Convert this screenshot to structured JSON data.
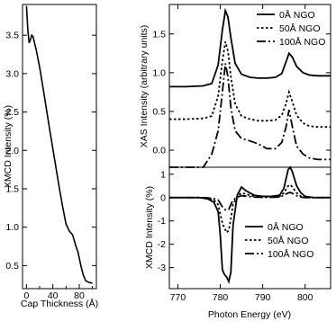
{
  "chart_data": [
    {
      "type": "line",
      "xlabel": "Cap Thickness (Å)",
      "ylabel": "XMCD Intensity (%)",
      "xlim": [
        -6,
        106
      ],
      "ylim": [
        0.2,
        3.9
      ],
      "xticks": [
        0,
        40,
        80
      ],
      "xtick_labels": [
        "0",
        "40",
        "80"
      ],
      "xminor": [
        20,
        60,
        100
      ],
      "yticks": [
        0.5,
        1.0,
        1.5,
        2.0,
        2.5,
        3.0,
        3.5
      ],
      "ytick_labels": [
        "0.5",
        "1.0",
        "1.5",
        "2.0",
        "2.5",
        "3.0",
        "3.5"
      ],
      "grid": false,
      "series": [
        {
          "x": [
            0,
            2,
            4,
            6,
            8,
            10,
            15,
            20,
            25,
            30,
            35,
            40,
            45,
            50,
            55,
            60,
            65,
            70,
            72,
            75,
            78,
            80,
            83,
            86,
            90,
            95,
            100
          ],
          "y": [
            3.88,
            3.58,
            3.4,
            3.44,
            3.5,
            3.48,
            3.3,
            3.08,
            2.82,
            2.55,
            2.28,
            2.02,
            1.76,
            1.5,
            1.26,
            1.04,
            0.95,
            0.9,
            0.84,
            0.75,
            0.68,
            0.6,
            0.48,
            0.38,
            0.3,
            0.28,
            0.27
          ]
        }
      ]
    },
    {
      "type": "line",
      "ylabel": "XAS Intensity (arbitrary units)",
      "xlim": [
        768,
        806
      ],
      "ylim": [
        -0.22,
        1.88
      ],
      "yticks": [
        0.0,
        0.5,
        1.0,
        1.5
      ],
      "ytick_labels": [
        "0.0",
        "0.5",
        "1.0",
        "1.5"
      ],
      "legend_position": "top-right",
      "series": [
        {
          "name": "0Å NGO",
          "x": [
            768,
            772,
            776,
            778,
            779.5,
            780.5,
            781.2,
            781.8,
            782.5,
            783.5,
            785,
            787,
            789,
            791,
            793,
            794.5,
            795.5,
            796.2,
            797,
            798,
            799.5,
            801,
            803,
            806
          ],
          "y": [
            0.82,
            0.82,
            0.83,
            0.86,
            1.1,
            1.55,
            1.8,
            1.72,
            1.45,
            1.12,
            0.98,
            0.94,
            0.93,
            0.93,
            0.94,
            0.99,
            1.14,
            1.25,
            1.2,
            1.08,
            1.0,
            0.97,
            0.96,
            0.96
          ]
        },
        {
          "name": "50Å NGO",
          "x": [
            768,
            772,
            776,
            778,
            779.5,
            780.5,
            781.2,
            781.8,
            782.5,
            783.5,
            785,
            787,
            789,
            791,
            793,
            794.5,
            795.5,
            796.2,
            797,
            798,
            799.5,
            801,
            803,
            806
          ],
          "y": [
            0.4,
            0.4,
            0.41,
            0.44,
            0.7,
            1.15,
            1.4,
            1.28,
            0.95,
            0.6,
            0.44,
            0.4,
            0.38,
            0.38,
            0.39,
            0.45,
            0.6,
            0.75,
            0.62,
            0.45,
            0.35,
            0.31,
            0.3,
            0.3
          ]
        },
        {
          "name": "100Å NGO",
          "x": [
            768,
            774,
            776,
            778,
            779.5,
            780.5,
            781.2,
            781.8,
            782.5,
            783.5,
            785,
            787,
            789,
            791,
            793,
            794.5,
            795.5,
            796.2,
            797,
            798,
            799.5,
            801,
            803,
            806
          ],
          "y": [
            -0.4,
            -0.3,
            -0.22,
            -0.05,
            0.25,
            0.75,
            1.12,
            0.95,
            0.55,
            0.25,
            0.15,
            0.12,
            0.08,
            0.02,
            0.02,
            0.1,
            0.3,
            0.52,
            0.3,
            0.05,
            -0.05,
            -0.1,
            -0.12,
            -0.12
          ]
        }
      ]
    },
    {
      "type": "line",
      "xlabel": "Photon Energy (eV)",
      "ylabel": "XMCD Intensity (%)",
      "xlim": [
        768,
        806
      ],
      "ylim": [
        -3.9,
        1.3
      ],
      "xticks": [
        770,
        780,
        790,
        800
      ],
      "xtick_labels": [
        "770",
        "780",
        "790",
        "800"
      ],
      "yticks": [
        -3,
        -2,
        -1,
        0,
        1
      ],
      "ytick_labels": [
        "-3",
        "-2",
        "-1",
        "0",
        "1"
      ],
      "legend_position": "bottom-right",
      "series": [
        {
          "name": "0Å NGO",
          "x": [
            768,
            775,
            777,
            778.5,
            779.5,
            780,
            780.5,
            781,
            781.5,
            782,
            782.5,
            783,
            784,
            785,
            786,
            788,
            790,
            792,
            794,
            795,
            796,
            796.5,
            797,
            798,
            799,
            800,
            802,
            806
          ],
          "y": [
            0,
            0,
            -0.05,
            -0.2,
            -0.6,
            -1.6,
            -3.1,
            -3.3,
            -3.4,
            -3.6,
            -3.2,
            -1.2,
            0.1,
            0.45,
            0.3,
            0.1,
            0.05,
            0.05,
            0.1,
            0.4,
            1.2,
            1.3,
            1.1,
            0.5,
            0.2,
            0.05,
            0,
            0
          ]
        },
        {
          "name": "50Å NGO",
          "x": [
            768,
            775,
            777,
            778.5,
            779.5,
            780,
            780.5,
            781,
            781.5,
            782,
            782.5,
            783,
            784,
            785,
            786,
            788,
            790,
            792,
            794,
            795,
            796,
            796.5,
            797,
            798,
            799,
            800,
            802,
            806
          ],
          "y": [
            0,
            0,
            -0.02,
            -0.1,
            -0.3,
            -0.7,
            -1.1,
            -1.3,
            -1.5,
            -1.4,
            -0.9,
            -0.3,
            0.05,
            0.2,
            0.15,
            0.05,
            0.02,
            0.02,
            0.05,
            0.2,
            0.5,
            0.55,
            0.45,
            0.2,
            0.05,
            0,
            0,
            0
          ]
        },
        {
          "name": "100Å NGO",
          "x": [
            768,
            775,
            777,
            778.5,
            779.5,
            780,
            780.5,
            781,
            781.5,
            782,
            782.5,
            783,
            784,
            785,
            786,
            788,
            790,
            792,
            794,
            795,
            796,
            796.5,
            797,
            798,
            799,
            800,
            802,
            806
          ],
          "y": [
            0,
            0,
            -0.01,
            -0.05,
            -0.1,
            -0.25,
            -0.4,
            -0.5,
            -0.55,
            -0.5,
            -0.3,
            -0.1,
            0.02,
            0.08,
            0.06,
            0.02,
            0.01,
            0.01,
            0.02,
            0.1,
            0.2,
            0.22,
            0.18,
            0.08,
            0.02,
            0,
            0,
            0
          ]
        }
      ]
    }
  ]
}
